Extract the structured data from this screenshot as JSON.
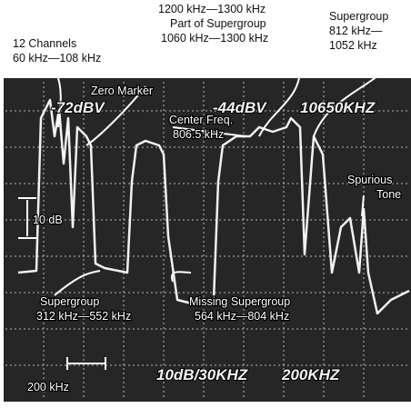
{
  "annotations": {
    "channels": [
      "12 Channels",
      "60 kHz—108 kHz"
    ],
    "part_of_supergroup": [
      "1200 kHz—1300 kHz",
      "Part of Supergroup",
      "1060 kHz—1300 kHz"
    ],
    "supergroup_top": [
      "Supergroup",
      "812 kHz—",
      "1052 kHz"
    ],
    "zero_marker": "Zero Marker",
    "center_freq": [
      "Center Freq.",
      "806.5 kHz"
    ],
    "spurious_tone": [
      "Spurious",
      "Tone"
    ],
    "scale": "10 dB",
    "supergroup_bottom": [
      "Supergroup",
      "312 kHz—552 kHz"
    ],
    "missing_supergroup": [
      "Missing Supergroup",
      "564 kHz—804 kHz"
    ],
    "span": "200 kHz"
  },
  "display": {
    "ref_level": "-72dBV",
    "marker_level": "-44dBV",
    "marker_freq": "10650KHZ",
    "scale_setting": "10dB/30KHZ",
    "span_setting": "200KHZ"
  }
}
